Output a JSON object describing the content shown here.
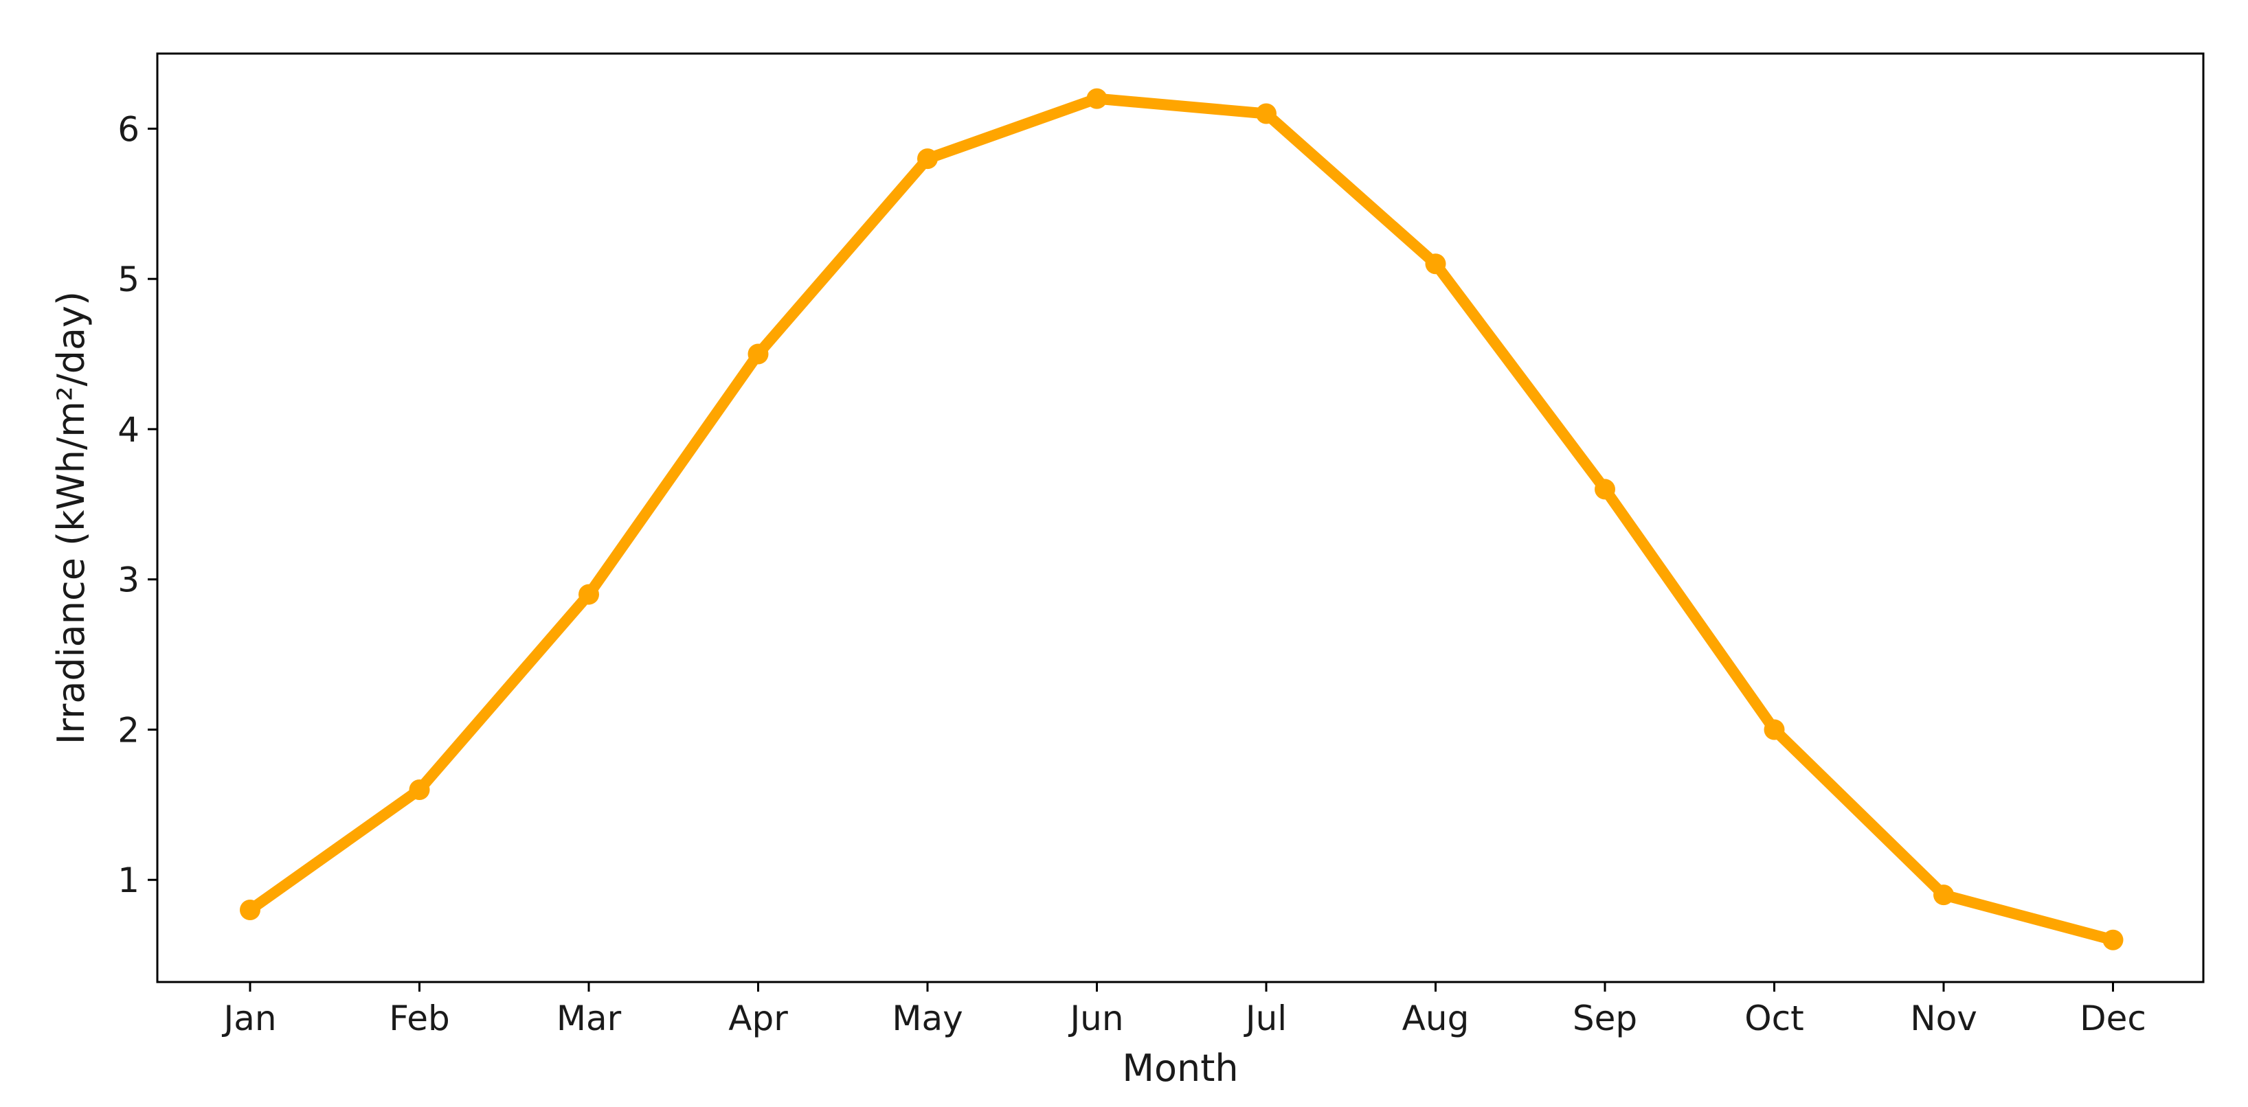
{
  "chart_data": {
    "type": "line",
    "title": "",
    "xlabel": "Month",
    "ylabel": "Irradiance (kWh/m²/day)",
    "categories": [
      "Jan",
      "Feb",
      "Mar",
      "Apr",
      "May",
      "Jun",
      "Jul",
      "Aug",
      "Sep",
      "Oct",
      "Nov",
      "Dec"
    ],
    "series": [
      {
        "values": [
          0.8,
          1.6,
          2.9,
          4.5,
          5.8,
          6.2,
          6.1,
          5.1,
          3.6,
          2.0,
          0.9,
          0.6
        ],
        "color": "#ffa500",
        "marker": "circle"
      }
    ],
    "yticks": [
      "1",
      "2",
      "3",
      "4",
      "5",
      "6"
    ],
    "ylim": [
      0.32,
      6.5
    ],
    "grid": false,
    "legend": "none"
  }
}
